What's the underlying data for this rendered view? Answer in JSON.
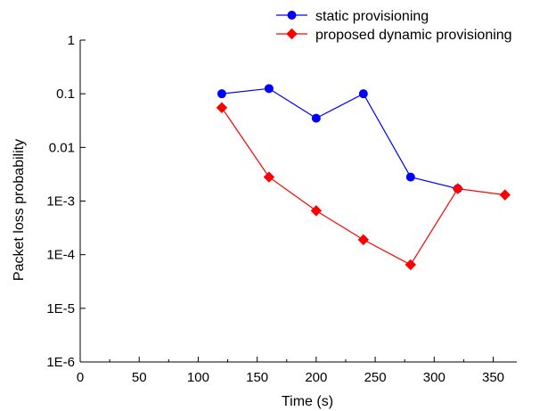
{
  "chart_data": {
    "type": "line",
    "title": "",
    "xlabel": "Time (s)",
    "ylabel": "Packet loss probability",
    "xlim": [
      0,
      370
    ],
    "ylim": [
      1e-06,
      1
    ],
    "yscale": "log",
    "grid": false,
    "legend_position": "top-right",
    "x_ticks": [
      {
        "value": 0,
        "label": "0"
      },
      {
        "value": 50,
        "label": "50"
      },
      {
        "value": 100,
        "label": "100"
      },
      {
        "value": 150,
        "label": "150"
      },
      {
        "value": 200,
        "label": "200"
      },
      {
        "value": 250,
        "label": "250"
      },
      {
        "value": 300,
        "label": "300"
      },
      {
        "value": 350,
        "label": "350"
      }
    ],
    "y_ticks": [
      {
        "value": 1,
        "label": "1"
      },
      {
        "value": 0.1,
        "label": "0.1"
      },
      {
        "value": 0.01,
        "label": "0.01"
      },
      {
        "value": 0.001,
        "label": "1E-3"
      },
      {
        "value": 0.0001,
        "label": "1E-4"
      },
      {
        "value": 1e-05,
        "label": "1E-5"
      },
      {
        "value": 1e-06,
        "label": "1E-6"
      }
    ],
    "series": [
      {
        "name": "static provisioning",
        "color": "#0000ff",
        "marker": "circle",
        "x": [
          120,
          160,
          200,
          240,
          280,
          320
        ],
        "y": [
          0.1,
          0.125,
          0.035,
          0.1,
          0.0028,
          0.0017
        ]
      },
      {
        "name": "proposed dynamic provisioning",
        "color": "#ff0000",
        "marker": "diamond",
        "x": [
          120,
          160,
          200,
          240,
          280,
          320,
          360
        ],
        "y": [
          0.055,
          0.0028,
          0.00066,
          0.00019,
          6.5e-05,
          0.0017,
          0.0013
        ]
      }
    ]
  }
}
